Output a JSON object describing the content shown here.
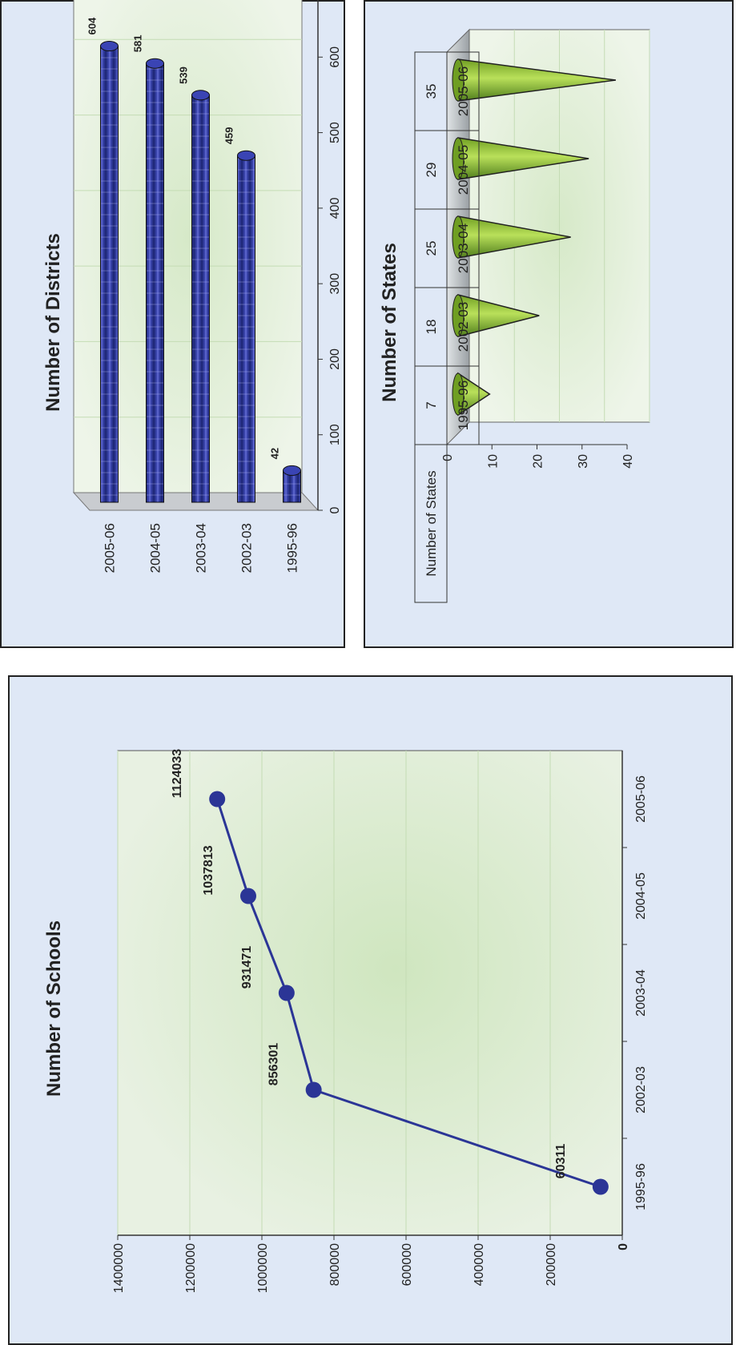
{
  "colors": {
    "panel_bg": "#dfe8f6",
    "plot_bg": "#e6f1dc",
    "line_color": "#2b3596",
    "cylinder_color": "#2b3596",
    "cone_color": "#8cbf2e"
  },
  "chart_data": [
    {
      "type": "line",
      "title": "Number of Schools",
      "categories": [
        "1995-96",
        "2002-03",
        "2003-04",
        "2004-05",
        "2005-06"
      ],
      "values": [
        60311,
        856301,
        931471,
        1037813,
        1124033
      ],
      "ylim": [
        0,
        1400000
      ],
      "yticks": [
        "0",
        "200000",
        "400000",
        "600000",
        "800000",
        "1000000",
        "1200000",
        "1400000"
      ],
      "grid": true,
      "data_labels": [
        "60311",
        "856301",
        "931471",
        "1037813",
        "1124033"
      ]
    },
    {
      "type": "bar",
      "subtype": "3d-cone",
      "title": "Number of States",
      "categories": [
        "1995-96",
        "2002-03",
        "2003-04",
        "2004-05",
        "2005-06"
      ],
      "values": [
        7,
        18,
        25,
        29,
        35
      ],
      "ylim": [
        0,
        40
      ],
      "yticks": [
        "0",
        "10",
        "20",
        "30",
        "40"
      ],
      "data_table": {
        "row_label": "Number of States",
        "values": [
          "7",
          "18",
          "25",
          "29",
          "35"
        ]
      }
    },
    {
      "type": "bar",
      "subtype": "3d-cylinder-horizontal",
      "title": "Number of Districts",
      "categories": [
        "2005-06",
        "2004-05",
        "2003-04",
        "2002-03",
        "1995-96"
      ],
      "values": [
        604,
        581,
        539,
        459,
        42
      ],
      "xlim": [
        0,
        700
      ],
      "xticks": [
        "0",
        "100",
        "200",
        "300",
        "400",
        "500",
        "600",
        "700"
      ],
      "data_labels": [
        "604",
        "581",
        "539",
        "459",
        "42"
      ]
    }
  ]
}
